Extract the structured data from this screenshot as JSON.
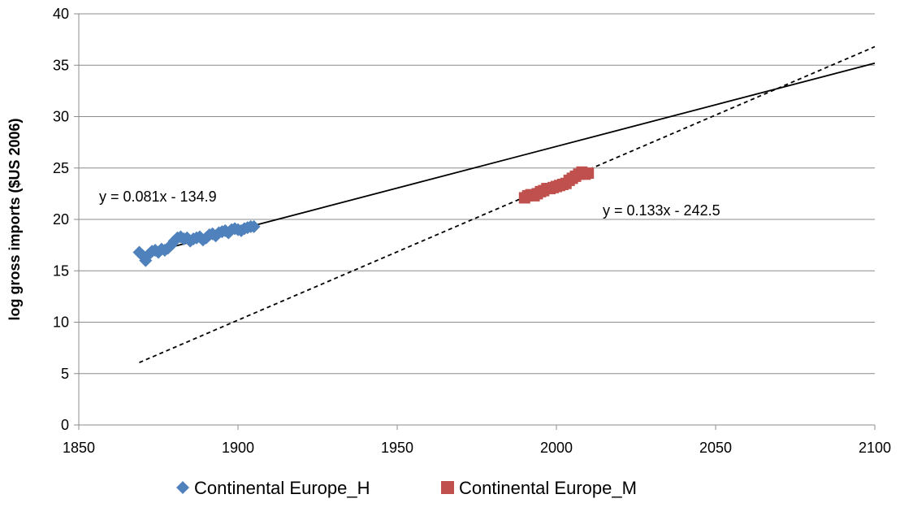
{
  "chart_data": {
    "type": "scatter",
    "title": "",
    "xlabel": "",
    "ylabel": "log gross imports ($US 2006)",
    "xlim": [
      1850,
      2100
    ],
    "ylim": [
      0,
      40
    ],
    "x_ticks": [
      "1850",
      "1900",
      "1950",
      "2000",
      "2050",
      "2100"
    ],
    "y_ticks": [
      "0",
      "5",
      "10",
      "15",
      "20",
      "25",
      "30",
      "35",
      "40"
    ],
    "grid": "horizontal",
    "legend_position": "bottom",
    "series": [
      {
        "name": "Continental Europe_H",
        "marker": "diamond",
        "color": "#4f81bd",
        "points": [
          [
            1869,
            16.8
          ],
          [
            1870,
            16.5
          ],
          [
            1871,
            16.0
          ],
          [
            1872,
            16.6
          ],
          [
            1873,
            16.9
          ],
          [
            1874,
            17.0
          ],
          [
            1875,
            16.8
          ],
          [
            1876,
            17.1
          ],
          [
            1877,
            17.0
          ],
          [
            1878,
            17.2
          ],
          [
            1879,
            17.5
          ],
          [
            1880,
            17.9
          ],
          [
            1881,
            18.2
          ],
          [
            1882,
            18.3
          ],
          [
            1883,
            18.1
          ],
          [
            1884,
            18.2
          ],
          [
            1885,
            17.9
          ],
          [
            1886,
            18.1
          ],
          [
            1887,
            18.2
          ],
          [
            1888,
            18.3
          ],
          [
            1889,
            18.0
          ],
          [
            1890,
            18.2
          ],
          [
            1891,
            18.5
          ],
          [
            1892,
            18.6
          ],
          [
            1893,
            18.4
          ],
          [
            1894,
            18.7
          ],
          [
            1895,
            18.8
          ],
          [
            1896,
            18.9
          ],
          [
            1897,
            18.7
          ],
          [
            1898,
            19.0
          ],
          [
            1899,
            19.1
          ],
          [
            1900,
            19.0
          ],
          [
            1901,
            18.9
          ],
          [
            1902,
            19.1
          ],
          [
            1903,
            19.2
          ],
          [
            1904,
            19.3
          ],
          [
            1905,
            19.3
          ]
        ],
        "trendline": {
          "label": "y = 0.081x - 134.9",
          "slope": 0.081,
          "intercept": -134.9,
          "x_range": [
            1869,
            2100
          ],
          "style": "solid"
        }
      },
      {
        "name": "Continental Europe_M",
        "marker": "square",
        "color": "#c0504d",
        "points": [
          [
            1990,
            22.1
          ],
          [
            1991,
            22.3
          ],
          [
            1992,
            22.4
          ],
          [
            1993,
            22.3
          ],
          [
            1994,
            22.5
          ],
          [
            1995,
            22.7
          ],
          [
            1996,
            22.8
          ],
          [
            1997,
            23.0
          ],
          [
            1998,
            23.0
          ],
          [
            1999,
            23.1
          ],
          [
            2000,
            23.2
          ],
          [
            2001,
            23.3
          ],
          [
            2002,
            23.4
          ],
          [
            2003,
            23.5
          ],
          [
            2004,
            23.8
          ],
          [
            2005,
            24.0
          ],
          [
            2006,
            24.2
          ],
          [
            2007,
            24.4
          ],
          [
            2008,
            24.6
          ],
          [
            2009,
            24.4
          ],
          [
            2010,
            24.5
          ]
        ],
        "trendline": {
          "label": "y = 0.133x - 242.5",
          "slope": 0.133,
          "intercept": -242.5,
          "x_range": [
            1869,
            2100
          ],
          "style": "dashed"
        }
      }
    ]
  }
}
